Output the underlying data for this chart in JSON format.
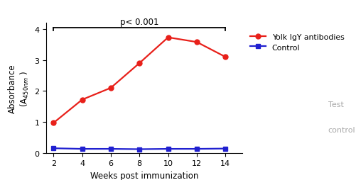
{
  "x": [
    2,
    4,
    6,
    8,
    10,
    12,
    14
  ],
  "yolk_igy": [
    0.97,
    1.72,
    2.1,
    2.9,
    3.73,
    3.58,
    3.1
  ],
  "control": [
    0.15,
    0.13,
    0.13,
    0.12,
    0.13,
    0.13,
    0.14
  ],
  "red_color": "#e8201a",
  "blue_color": "#2020d0",
  "xlabel": "Weeks post immunization",
  "ylim": [
    0,
    4.2
  ],
  "xlim": [
    1.5,
    15.2
  ],
  "yticks": [
    0,
    1,
    2,
    3,
    4
  ],
  "xticks": [
    2,
    4,
    6,
    8,
    10,
    12,
    14
  ],
  "legend_yolk": "Yolk IgY antibodies",
  "legend_control": "Control",
  "pvalue_text": "p< 0.001",
  "bracket_x1": 2,
  "bracket_x2": 14,
  "bracket_y": 4.05,
  "right_text_test": "Test",
  "right_text_control": "control",
  "marker_size": 5,
  "line_width": 1.6
}
